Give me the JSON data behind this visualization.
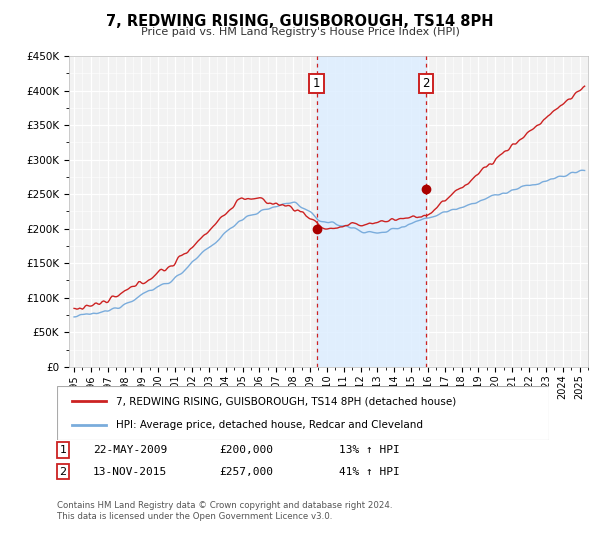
{
  "title": "7, REDWING RISING, GUISBOROUGH, TS14 8PH",
  "subtitle": "Price paid vs. HM Land Registry's House Price Index (HPI)",
  "background_color": "#ffffff",
  "plot_bg_color": "#f2f2f2",
  "grid_color": "#ffffff",
  "shade_color": "#ddeeff",
  "transaction1": {
    "date_num": 2009.39,
    "price": 200000,
    "label": "1",
    "date_str": "22-MAY-2009",
    "pct": "13%"
  },
  "transaction2": {
    "date_num": 2015.87,
    "price": 257000,
    "label": "2",
    "date_str": "13-NOV-2015",
    "pct": "41%"
  },
  "hpi_line_color": "#7aacdc",
  "price_line_color": "#cc2222",
  "dot_color": "#aa0000",
  "legend1": "7, REDWING RISING, GUISBOROUGH, TS14 8PH (detached house)",
  "legend2": "HPI: Average price, detached house, Redcar and Cleveland",
  "note1_date": "22-MAY-2009",
  "note1_price": "£200,000",
  "note1_pct": "13% ↑ HPI",
  "note2_date": "13-NOV-2015",
  "note2_price": "£257,000",
  "note2_pct": "41% ↑ HPI",
  "footnote": "Contains HM Land Registry data © Crown copyright and database right 2024.\nThis data is licensed under the Open Government Licence v3.0.",
  "ylim": [
    0,
    450000
  ],
  "xlim_start": 1994.7,
  "xlim_end": 2025.5,
  "yticks": [
    0,
    50000,
    100000,
    150000,
    200000,
    250000,
    300000,
    350000,
    400000,
    450000
  ],
  "xticks": [
    1995,
    1996,
    1997,
    1998,
    1999,
    2000,
    2001,
    2002,
    2003,
    2004,
    2005,
    2006,
    2007,
    2008,
    2009,
    2010,
    2011,
    2012,
    2013,
    2014,
    2015,
    2016,
    2017,
    2018,
    2019,
    2020,
    2021,
    2022,
    2023,
    2024,
    2025
  ]
}
